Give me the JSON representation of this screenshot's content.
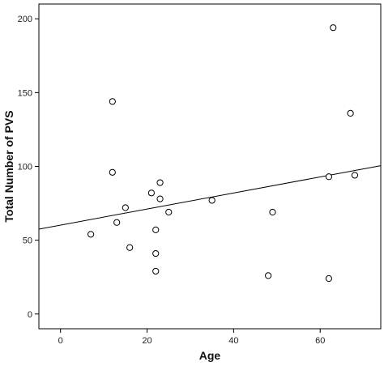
{
  "chart_data": {
    "type": "scatter",
    "title": "",
    "xlabel": "Age",
    "ylabel": "Total Number of PVS",
    "xlim": [
      -5,
      74
    ],
    "ylim": [
      -10,
      210
    ],
    "xticks": [
      0,
      20,
      40,
      60
    ],
    "yticks": [
      0,
      50,
      100,
      150,
      200
    ],
    "grid": false,
    "legend": "none",
    "points": [
      {
        "x": 7,
        "y": 54
      },
      {
        "x": 12,
        "y": 144
      },
      {
        "x": 12,
        "y": 96
      },
      {
        "x": 13,
        "y": 62
      },
      {
        "x": 15,
        "y": 72
      },
      {
        "x": 16,
        "y": 45
      },
      {
        "x": 21,
        "y": 82
      },
      {
        "x": 22,
        "y": 57
      },
      {
        "x": 22,
        "y": 41
      },
      {
        "x": 22,
        "y": 29
      },
      {
        "x": 23,
        "y": 89
      },
      {
        "x": 23,
        "y": 78
      },
      {
        "x": 25,
        "y": 69
      },
      {
        "x": 35,
        "y": 77
      },
      {
        "x": 48,
        "y": 26
      },
      {
        "x": 49,
        "y": 69
      },
      {
        "x": 62,
        "y": 93
      },
      {
        "x": 62,
        "y": 24
      },
      {
        "x": 63,
        "y": 194
      },
      {
        "x": 67,
        "y": 136
      },
      {
        "x": 68,
        "y": 94
      }
    ],
    "fit_line": {
      "x": [
        -5,
        74
      ],
      "y": [
        57.5,
        100.5
      ]
    },
    "colors": {
      "marker_stroke": "#000000",
      "line": "#000000",
      "frame": "#000000"
    }
  }
}
